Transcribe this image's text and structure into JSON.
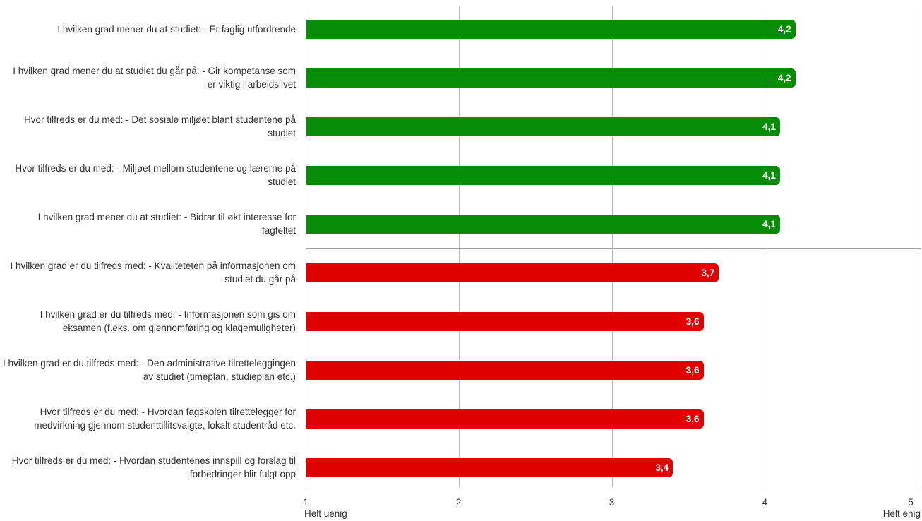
{
  "chart_data": {
    "type": "bar",
    "orientation": "horizontal",
    "categories": [
      "I hvilken grad mener du at studiet: - Er faglig utfordrende",
      "I hvilken grad mener du at studiet du går på: - Gir kompetanse som er viktig i arbeidslivet",
      "Hvor tilfreds er du med: - Det sosiale miljøet blant studentene på studiet",
      "Hvor tilfreds er du med: - Miljøet mellom studentene og lærerne på studiet",
      "I hvilken grad mener du at studiet: - Bidrar til økt interesse for fagfeltet",
      "I hvilken grad er du tilfreds med: - Kvaliteteten på informasjonen om studiet du går på",
      "I hvilken grad er du tilfreds med: - Informasjonen som gis om eksamen (f.eks. om gjennomføring og klagemuligheter)",
      "I hvilken grad er du tilfreds med: - Den administrative tilretteleggingen av studiet (timeplan, studieplan etc.)",
      "Hvor tilfreds er du med: - Hvordan fagskolen tilrettelegger for medvirkning gjennom studenttillitsvalgte, lokalt studentråd etc.",
      "Hvor tilfreds er du med: - Hvordan studentenes innspill og forslag til forbedringer blir fulgt opp"
    ],
    "values": [
      4.2,
      4.2,
      4.1,
      4.1,
      4.1,
      3.7,
      3.6,
      3.6,
      3.6,
      3.4
    ],
    "value_labels": [
      "4,2",
      "4,2",
      "4,1",
      "4,1",
      "4,1",
      "3,7",
      "3,6",
      "3,6",
      "3,6",
      "3,4"
    ],
    "groups": [
      "top",
      "top",
      "top",
      "top",
      "top",
      "bottom",
      "bottom",
      "bottom",
      "bottom",
      "bottom"
    ],
    "group_colors": {
      "top": "#078c07",
      "bottom": "#e00000"
    },
    "xlim": [
      1,
      5
    ],
    "xticks": [
      "1",
      "2",
      "3",
      "4",
      "5"
    ],
    "x_end_labels": {
      "min": "Helt uenig",
      "max": "Helt enig"
    },
    "grid": true,
    "title": "",
    "xlabel": "",
    "ylabel": ""
  }
}
